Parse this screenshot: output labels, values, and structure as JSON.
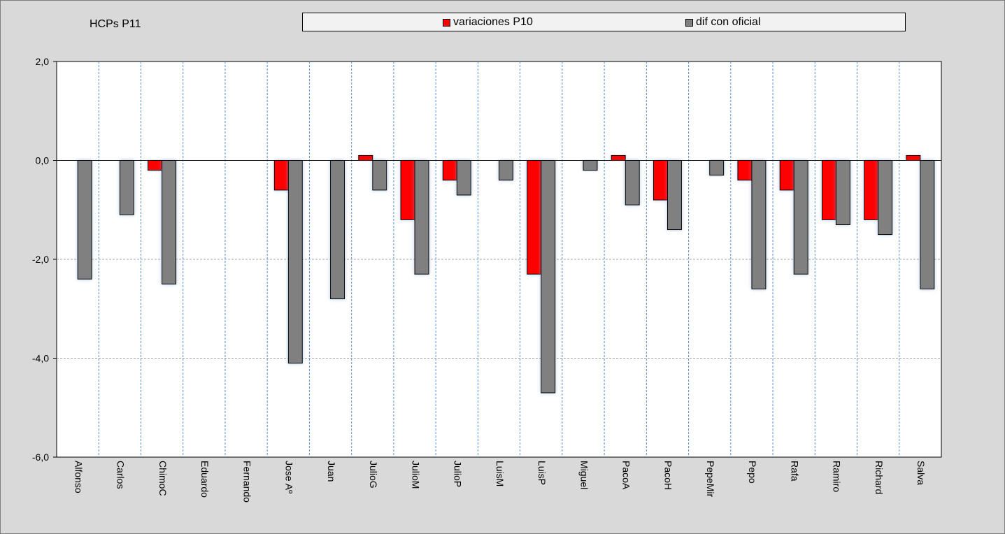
{
  "chart_data": {
    "type": "bar",
    "title": "HCPs P11",
    "categories": [
      "Alfonso",
      "Carlos",
      "ChimoC",
      "Eduardo",
      "Fernando",
      "Jose Aº",
      "Juan",
      "JulioG",
      "JulioM",
      "JulioP",
      "LuisM",
      "LuisP",
      "Miguel",
      "PacoA",
      "PacoH",
      "PepeMir",
      "Pepo",
      "Rafa",
      "Ramiro",
      "Richard",
      "Salva"
    ],
    "series": [
      {
        "name": "variaciones P10",
        "color": "#ff0000",
        "values": [
          0,
          0,
          -0.2,
          0,
          0,
          -0.6,
          0,
          0.1,
          -1.2,
          -0.4,
          0,
          -2.3,
          0,
          0.1,
          -0.8,
          0,
          -0.4,
          -0.6,
          -1.2,
          -1.2,
          0.1
        ]
      },
      {
        "name": "dif con oficial",
        "color": "#808080",
        "values": [
          -2.4,
          -1.1,
          -2.5,
          0,
          0,
          -4.1,
          -2.8,
          -0.6,
          -2.3,
          -0.7,
          -0.4,
          -4.7,
          -0.2,
          -0.9,
          -1.4,
          -0.3,
          -2.6,
          -2.3,
          -1.3,
          -1.5,
          -2.6
        ]
      }
    ],
    "yticks": [
      "2,0",
      "0,0",
      "-2,0",
      "-4,0",
      "-6,0"
    ],
    "ytick_values": [
      2,
      0,
      -2,
      -4,
      -6
    ],
    "ylim": [
      -6,
      2
    ],
    "xlabel": "",
    "ylabel": "",
    "legend_position": "top"
  }
}
